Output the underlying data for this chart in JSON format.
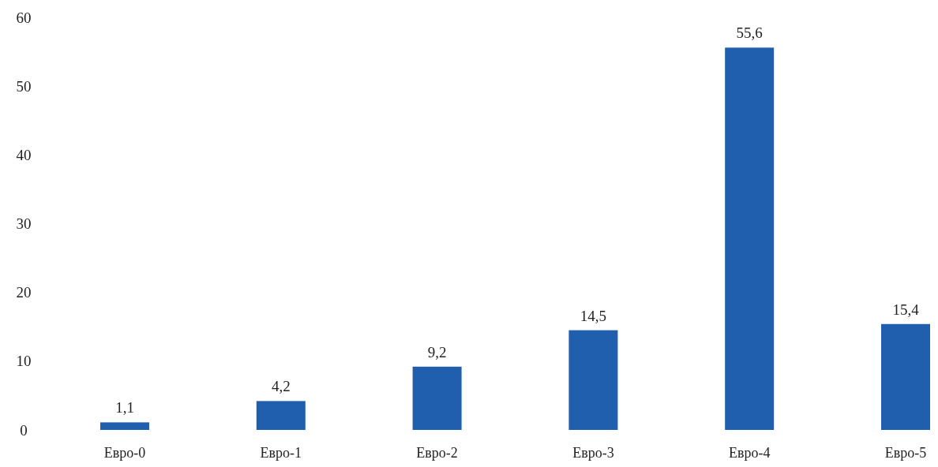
{
  "chart_data": {
    "type": "bar",
    "categories": [
      "Евро-0",
      "Евро-1",
      "Евро-2",
      "Евро-3",
      "Евро-4",
      "Евро-5"
    ],
    "values": [
      1.1,
      4.2,
      9.2,
      14.5,
      55.6,
      15.4
    ],
    "value_labels": [
      "1,1",
      "4,2",
      "9,2",
      "14,5",
      "55,6",
      "15,4"
    ],
    "color": "#1f5fae",
    "ylim": [
      0,
      60
    ],
    "yticks": [
      0,
      10,
      20,
      30,
      40,
      50,
      60
    ],
    "grid": false
  }
}
